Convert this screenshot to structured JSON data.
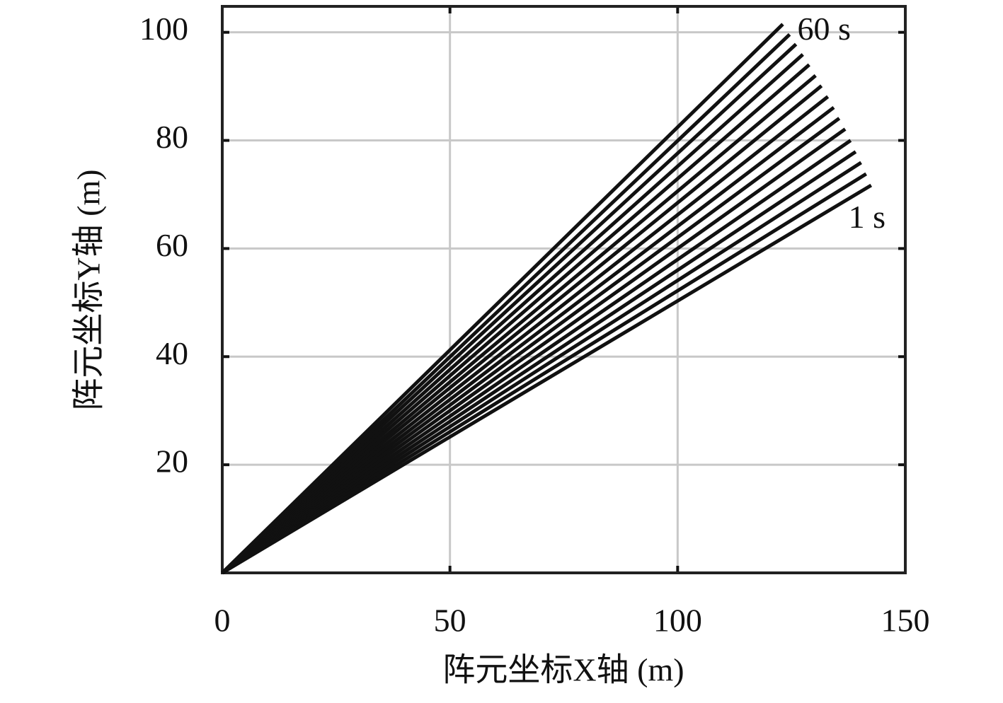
{
  "chart_data": {
    "type": "line",
    "x_label": "阵元坐标X轴 (m)",
    "y_label": "阵元坐标Y轴 (m)",
    "xlim": [
      0,
      150
    ],
    "ylim": [
      0,
      104.8
    ],
    "xticks": [
      0,
      50,
      100,
      150
    ],
    "yticks": [
      20,
      40,
      60,
      80,
      100
    ],
    "grid": true,
    "color": "#111111",
    "series": [
      {
        "x": [
          0,
          142.5
        ],
        "values": [
          0,
          71.7
        ]
      },
      {
        "x": [
          0,
          141.4
        ],
        "values": [
          0,
          73.8
        ]
      },
      {
        "x": [
          0,
          140.3
        ],
        "values": [
          0,
          75.9
        ]
      },
      {
        "x": [
          0,
          139.1
        ],
        "values": [
          0,
          77.9
        ]
      },
      {
        "x": [
          0,
          138.0
        ],
        "values": [
          0,
          80.0
        ]
      },
      {
        "x": [
          0,
          136.8
        ],
        "values": [
          0,
          82.1
        ]
      },
      {
        "x": [
          0,
          135.5
        ],
        "values": [
          0,
          84.1
        ]
      },
      {
        "x": [
          0,
          134.3
        ],
        "values": [
          0,
          86.1
        ]
      },
      {
        "x": [
          0,
          133.0
        ],
        "values": [
          0,
          88.1
        ]
      },
      {
        "x": [
          0,
          131.6
        ],
        "values": [
          0,
          90.1
        ]
      },
      {
        "x": [
          0,
          130.3
        ],
        "values": [
          0,
          92.0
        ]
      },
      {
        "x": [
          0,
          128.9
        ],
        "values": [
          0,
          94.0
        ]
      },
      {
        "x": [
          0,
          127.5
        ],
        "values": [
          0,
          95.9
        ]
      },
      {
        "x": [
          0,
          126.0
        ],
        "values": [
          0,
          97.8
        ]
      },
      {
        "x": [
          0,
          124.6
        ],
        "values": [
          0,
          99.6
        ]
      },
      {
        "x": [
          0,
          123.1
        ],
        "values": [
          0,
          101.5
        ]
      }
    ],
    "annotations": [
      {
        "text": "60 s",
        "x": 126.3,
        "y": 100
      },
      {
        "text": "1 s",
        "x": 137.5,
        "y": 65.2
      }
    ]
  }
}
